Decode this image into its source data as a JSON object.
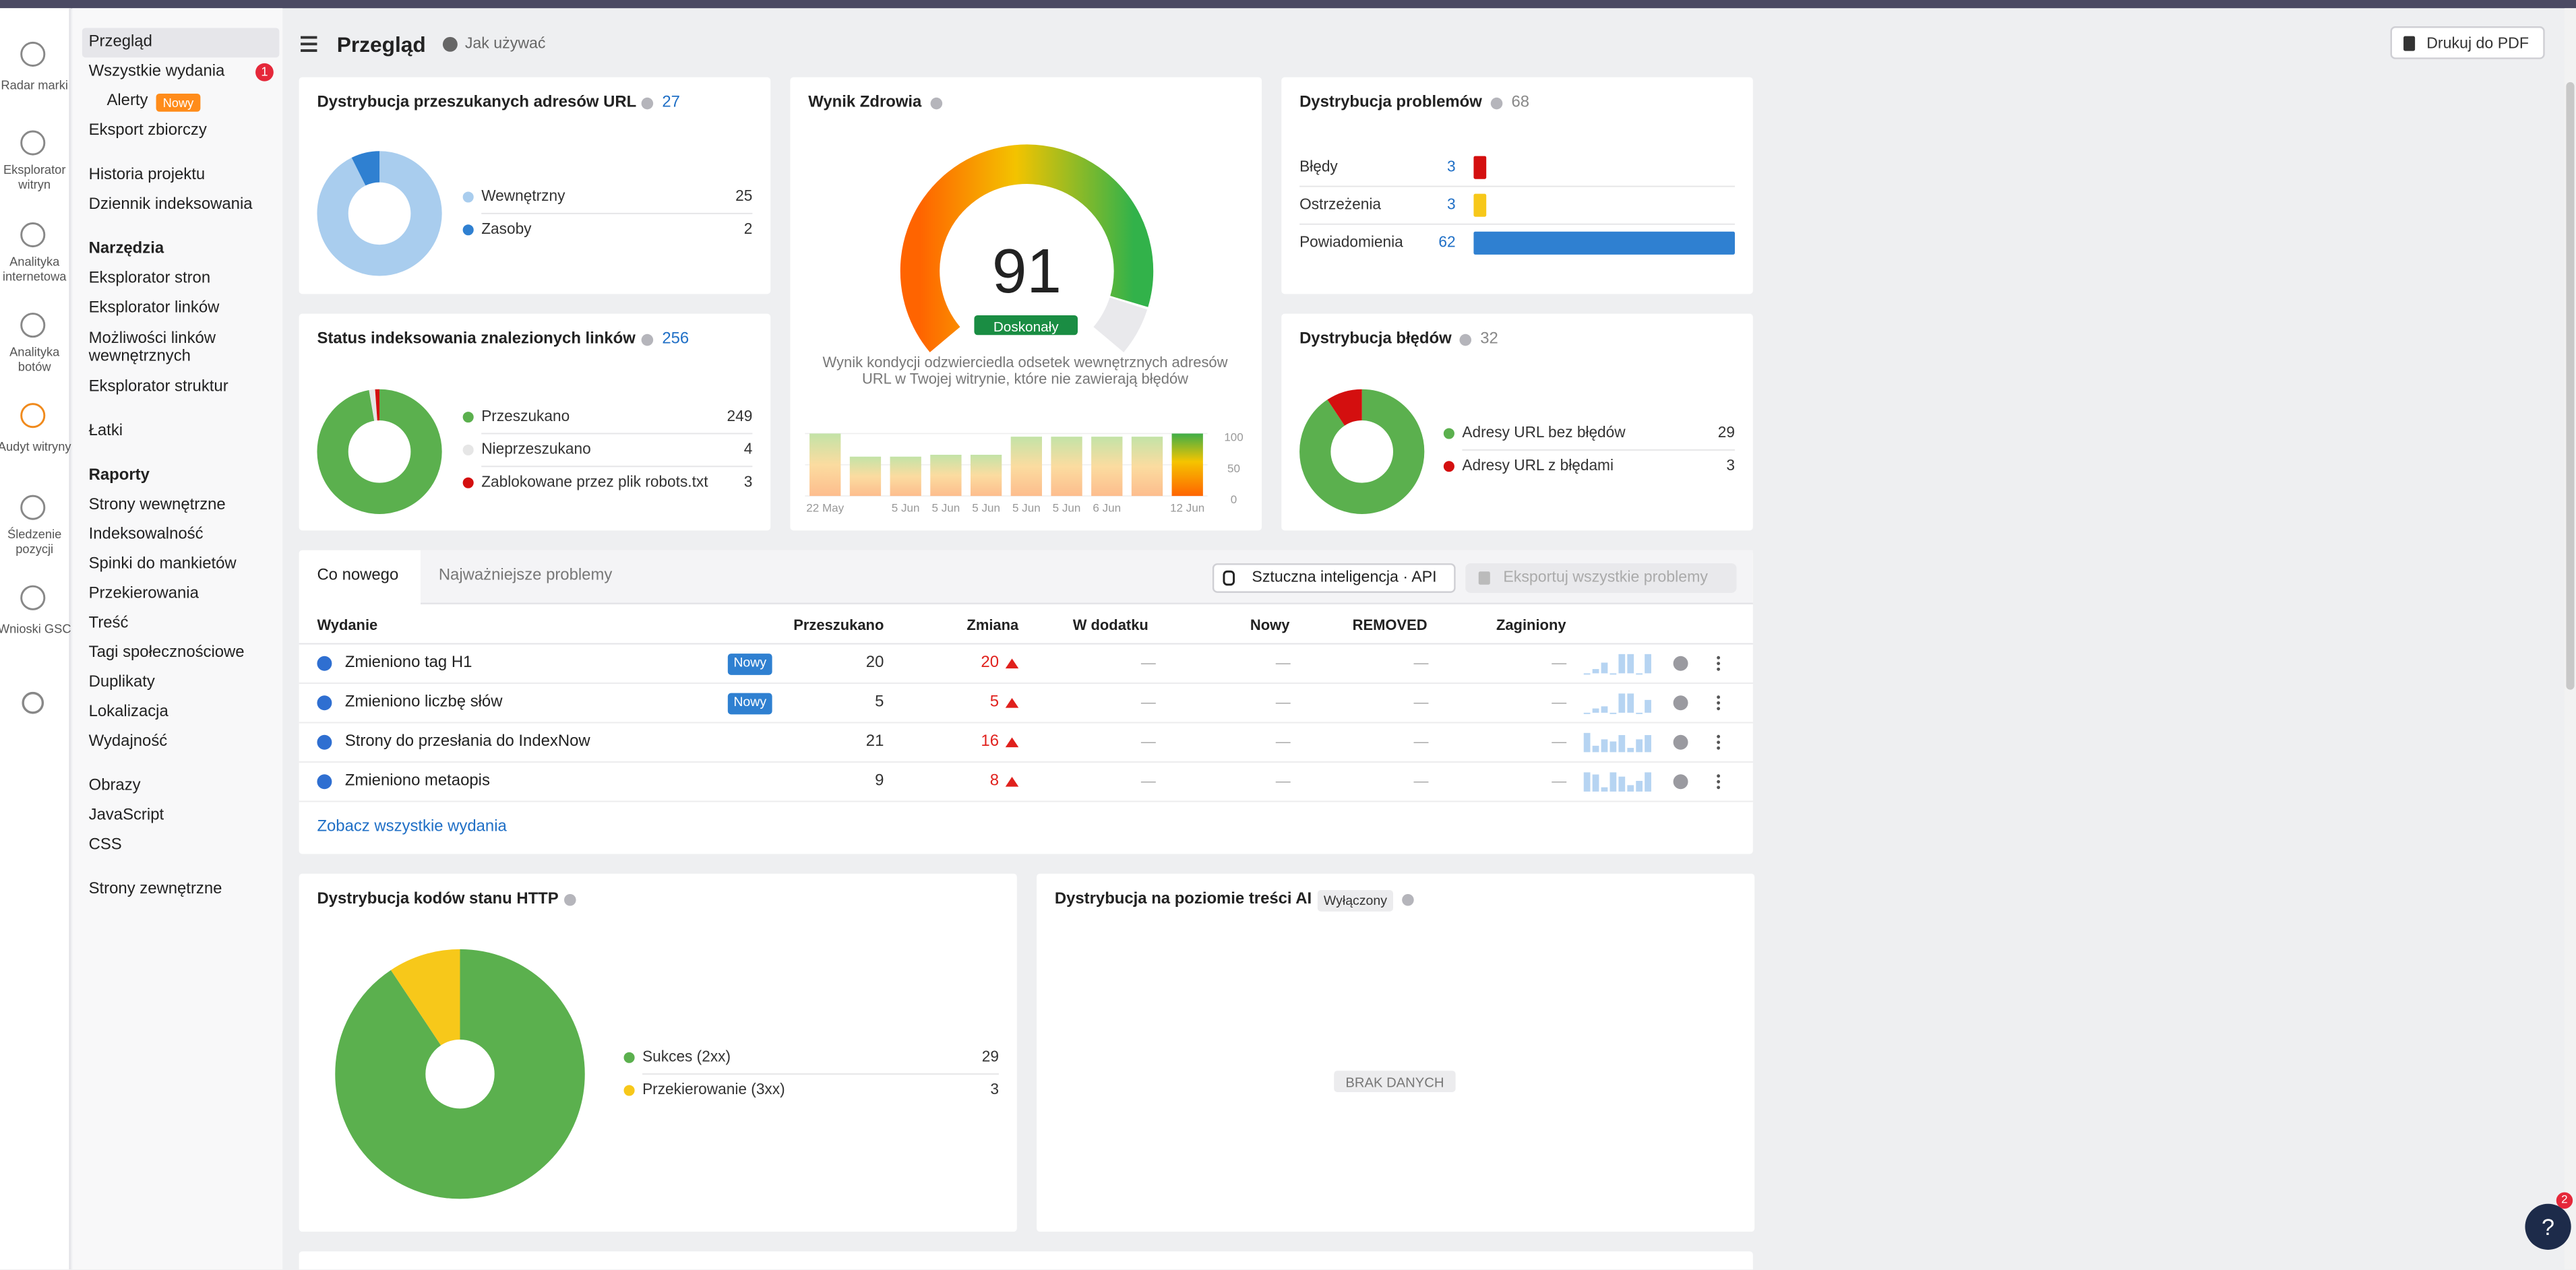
{
  "top_bar": {
    "title": "Przegląd",
    "help": "Jak używać",
    "print": "Drukuj do PDF"
  },
  "tools": [
    "Radar marki",
    "Eksplorator witryn",
    "Analityka internetowa",
    "Analityka botów",
    "Audyt witryny",
    "Śledzenie pozycji",
    "Wnioski GSC"
  ],
  "nav": [
    {
      "items": [
        {
          "label": "Przegląd",
          "active": true
        },
        {
          "label": "Wszystkie wydania",
          "badge": 1
        },
        {
          "label": "Alerty",
          "badge": "Nowy",
          "sub": true
        },
        {
          "label": "Eksport zbiorczy"
        }
      ]
    },
    {
      "items": [
        {
          "label": "Historia projektu"
        },
        {
          "label": "Dziennik indeksowania"
        }
      ]
    },
    {
      "heading": "Narzędzia",
      "items": [
        {
          "label": "Eksplorator stron"
        },
        {
          "label": "Eksplorator linków"
        },
        {
          "label": "Możliwości linków wewnętrznych"
        },
        {
          "label": "Eksplorator struktur"
        }
      ]
    },
    {
      "items": [
        {
          "label": "Łatki"
        }
      ]
    },
    {
      "heading": "Raporty",
      "items": [
        {
          "label": "Strony wewnętrzne"
        },
        {
          "label": "Indeksowalność"
        },
        {
          "label": "Spinki do mankietów"
        },
        {
          "label": "Przekierowania"
        },
        {
          "label": "Treść"
        },
        {
          "label": "Tagi społecznościowe"
        },
        {
          "label": "Duplikaty"
        },
        {
          "label": "Lokalizacja"
        },
        {
          "label": "Wydajność"
        }
      ]
    },
    {
      "items": [
        {
          "label": "Obrazy"
        },
        {
          "label": "JavaScript"
        },
        {
          "label": "CSS"
        }
      ]
    },
    {
      "items": [
        {
          "label": "Strony zewnętrzne"
        }
      ]
    }
  ],
  "url_distribution": {
    "title": "Dystrybucja przeszukanych adresów URL",
    "total": 27,
    "items": [
      {
        "label": "Wewnętrzny",
        "value": 25,
        "color": "#a9cdee"
      },
      {
        "label": "Zasoby",
        "value": 2,
        "color": "#2f80d1"
      }
    ]
  },
  "health": {
    "title": "Wynik Zdrowia",
    "score": 91,
    "rating": "Doskonały",
    "description": "Wynik kondycji odzwierciedla odsetek wewnętrznych adresów URL w Twojej witrynie, które nie zawierają błędów",
    "history": {
      "categories": [
        "22 May",
        null,
        "5 Jun",
        "5 Jun",
        "5 Jun",
        "5 Jun",
        "5 Jun",
        "6 Jun",
        null,
        "12 Jun"
      ],
      "values": [
        100,
        63,
        63,
        66,
        66,
        95,
        95,
        95,
        95,
        100
      ],
      "ylim": [
        0,
        100
      ],
      "yticks": [
        0,
        50,
        100
      ]
    }
  },
  "problems": {
    "title": "Dystrybucja problemów",
    "total": 68,
    "items": [
      {
        "label": "Błędy",
        "value": 3,
        "color": "#d40f0f"
      },
      {
        "label": "Ostrzeżenia",
        "value": 3,
        "color": "#f7c81a"
      },
      {
        "label": "Powiadomienia",
        "value": 62,
        "color": "#2f80d1"
      }
    ]
  },
  "index_status": {
    "title": "Status indeksowania znalezionych linków",
    "total": 256,
    "items": [
      {
        "label": "Przeszukano",
        "value": 249,
        "color": "#5bb04e"
      },
      {
        "label": "Nieprzeszukano",
        "value": 4,
        "color": "#e6e6e6"
      },
      {
        "label": "Zablokowane przez plik robots.txt",
        "value": 3,
        "color": "#d40f0f"
      }
    ]
  },
  "error_distribution": {
    "title": "Dystrybucja błędów",
    "total": 32,
    "items": [
      {
        "label": "Adresy URL bez błędów",
        "value": 29,
        "color": "#5bb04e"
      },
      {
        "label": "Adresy URL z błędami",
        "value": 3,
        "color": "#d40f0f"
      }
    ]
  },
  "releases": {
    "tabs": [
      "Co nowego",
      "Najważniejsze problemy"
    ],
    "buttons": [
      "Sztuczna inteligencja · API",
      "Eksportuj wszystkie problemy"
    ],
    "columns": [
      "Wydanie",
      "Przeszukano",
      "Zmiana",
      "W dodatku",
      "Nowy",
      "REMOVED",
      "Zaginiony"
    ],
    "rows": [
      {
        "name": "Zmieniono tag H1",
        "badge": "Nowy",
        "crawled": 20,
        "change": 20,
        "added": "—",
        "new": "—",
        "removed": "—",
        "lost": "—",
        "trend": [
          0,
          2,
          5,
          0,
          9,
          9,
          0,
          9
        ]
      },
      {
        "name": "Zmieniono liczbę słów",
        "badge": "Nowy",
        "crawled": 5,
        "change": 5,
        "added": "—",
        "new": "—",
        "removed": "—",
        "lost": "—",
        "trend": [
          0,
          2,
          3,
          0,
          9,
          9,
          0,
          6
        ]
      },
      {
        "name": "Strony do przesłania do IndexNow",
        "crawled": 21,
        "change": 16,
        "added": "—",
        "new": "—",
        "removed": "—",
        "lost": "—",
        "trend": [
          9,
          3,
          6,
          5,
          8,
          2,
          6,
          8
        ]
      },
      {
        "name": "Zmieniono metaopis",
        "crawled": 9,
        "change": 8,
        "added": "—",
        "new": "—",
        "removed": "—",
        "lost": "—",
        "trend": [
          9,
          8,
          2,
          9,
          7,
          3,
          5,
          9
        ]
      }
    ],
    "link": "Zobacz wszystkie wydania"
  },
  "http_status": {
    "title": "Dystrybucja kodów stanu HTTP",
    "items": [
      {
        "label": "Sukces (2xx)",
        "value": 29,
        "color": "#5bb04e"
      },
      {
        "label": "Przekierowanie (3xx)",
        "value": 3,
        "color": "#f7c81a"
      }
    ]
  },
  "ai_content": {
    "title": "Dystrybucja na poziomie treści AI",
    "badge": "Wyłączony",
    "empty": "BRAK DANYCH"
  },
  "help_button": {
    "label": "?",
    "badge": 2
  }
}
